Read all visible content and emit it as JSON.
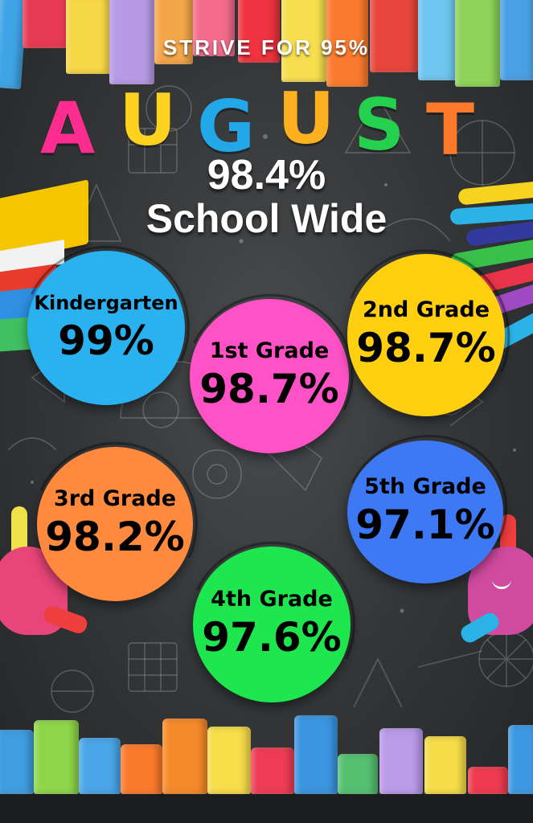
{
  "header": {
    "tagline": "STRIVE FOR 95%",
    "month_letters": [
      "A",
      "U",
      "G",
      "U",
      "S",
      "T"
    ],
    "month_colors": [
      "#ff2d8f",
      "#ffd21f",
      "#22a8e8",
      "#ffb020",
      "#26d04f",
      "#ff7a2a"
    ]
  },
  "school": {
    "percentage": "98.4%",
    "label": "School Wide"
  },
  "grades": [
    {
      "name": "Kindergarten",
      "value": "99%",
      "color": "#2ab1ef"
    },
    {
      "name": "1st Grade",
      "value": "98.7%",
      "color": "#ff52c6"
    },
    {
      "name": "2nd Grade",
      "value": "98.7%",
      "color": "#ffcf10"
    },
    {
      "name": "3rd Grade",
      "value": "98.2%",
      "color": "#ff8a3d"
    },
    {
      "name": "4th Grade",
      "value": "97.6%",
      "color": "#1ee64e"
    },
    {
      "name": "5th Grade",
      "value": "97.1%",
      "color": "#3d78f5"
    }
  ]
}
